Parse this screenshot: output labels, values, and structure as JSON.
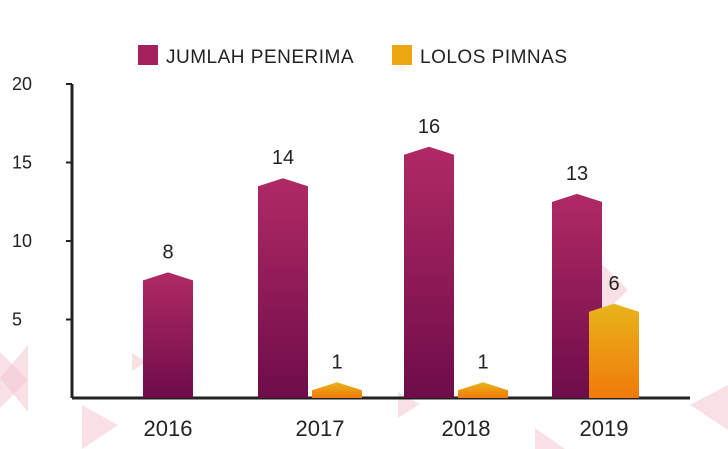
{
  "chart_data": {
    "type": "bar",
    "categories": [
      "2016",
      "2017",
      "2018",
      "2019"
    ],
    "series": [
      {
        "name": "JUMLAH PENERIMA",
        "values": [
          8,
          14,
          16,
          13
        ],
        "color": "#9b1e5a"
      },
      {
        "name": "LOLOS PIMNAS",
        "values": [
          null,
          1,
          1,
          6
        ],
        "color": "#f0a800"
      }
    ],
    "data_labels": [
      [
        "8",
        "14",
        "16",
        "13"
      ],
      [
        "",
        "1",
        "1",
        "6"
      ]
    ],
    "y_ticks": [
      "20",
      "15",
      "10",
      "5"
    ],
    "y_tick_values": [
      20,
      15,
      10,
      5
    ],
    "ylim": [
      0,
      20
    ],
    "legend_position": "top",
    "grid": false
  }
}
